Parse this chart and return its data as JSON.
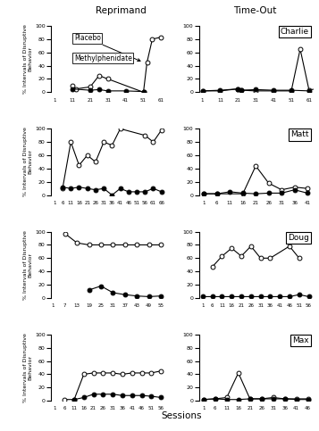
{
  "title_reprimand": "Reprimand",
  "title_timeout": "Time-Out",
  "xlabel": "Sessions",
  "panels": [
    {
      "row": 0,
      "col": 0,
      "placebo_x": [
        11,
        13,
        21,
        26,
        31,
        51,
        53,
        56,
        61
      ],
      "placebo_y": [
        10,
        5,
        8,
        25,
        20,
        0,
        45,
        80,
        83
      ],
      "methyl_x": [
        11,
        21,
        26,
        31,
        41,
        51
      ],
      "methyl_y": [
        5,
        3,
        4,
        2,
        2,
        1
      ],
      "xticks": [
        1,
        11,
        21,
        31,
        41,
        51,
        61
      ],
      "xlim": [
        -1,
        63
      ],
      "ylim": [
        0,
        100
      ],
      "show_legend": true,
      "name": ""
    },
    {
      "row": 0,
      "col": 1,
      "placebo_x": [
        1,
        11,
        21,
        23,
        31,
        41,
        51,
        56,
        61,
        63
      ],
      "placebo_y": [
        2,
        2,
        5,
        3,
        2,
        2,
        2,
        65,
        3,
        2
      ],
      "methyl_x": [
        1,
        11,
        21,
        23,
        31,
        41,
        51,
        61
      ],
      "methyl_y": [
        2,
        3,
        5,
        3,
        4,
        3,
        3,
        2
      ],
      "xticks": [
        1,
        11,
        21,
        31,
        41,
        51,
        61
      ],
      "xlim": [
        -1,
        63
      ],
      "ylim": [
        0,
        100
      ],
      "show_legend": false,
      "name": "Charlie"
    },
    {
      "row": 1,
      "col": 0,
      "placebo_x": [
        6,
        11,
        16,
        21,
        26,
        31,
        36,
        41,
        56,
        61,
        66
      ],
      "placebo_y": [
        10,
        80,
        45,
        60,
        50,
        80,
        75,
        100,
        90,
        80,
        98
      ],
      "methyl_x": [
        6,
        11,
        16,
        21,
        26,
        31,
        36,
        41,
        46,
        51,
        56,
        61,
        66
      ],
      "methyl_y": [
        12,
        10,
        12,
        10,
        8,
        10,
        0,
        10,
        5,
        5,
        5,
        10,
        5
      ],
      "xticks": [
        1,
        6,
        11,
        16,
        21,
        26,
        31,
        36,
        41,
        46,
        51,
        56,
        61,
        66
      ],
      "xlim": [
        -1,
        68
      ],
      "ylim": [
        0,
        100
      ],
      "show_legend": false,
      "name": ""
    },
    {
      "row": 1,
      "col": 1,
      "placebo_x": [
        1,
        6,
        16,
        21,
        26,
        31,
        36,
        41
      ],
      "placebo_y": [
        2,
        2,
        2,
        44,
        18,
        8,
        12,
        10
      ],
      "methyl_x": [
        1,
        6,
        11,
        16,
        21,
        26,
        31,
        36,
        41
      ],
      "methyl_y": [
        2,
        2,
        5,
        3,
        2,
        3,
        3,
        8,
        3
      ],
      "xticks": [
        1,
        6,
        11,
        16,
        21,
        26,
        31,
        36,
        41
      ],
      "xlim": [
        -1,
        43
      ],
      "ylim": [
        0,
        100
      ],
      "show_legend": false,
      "name": "Matt"
    },
    {
      "row": 2,
      "col": 0,
      "placebo_x": [
        7,
        13,
        19,
        25,
        31,
        37,
        43,
        49,
        55
      ],
      "placebo_y": [
        97,
        83,
        80,
        80,
        80,
        80,
        80,
        80,
        80
      ],
      "methyl_x": [
        19,
        25,
        31,
        37,
        43,
        49,
        55
      ],
      "methyl_y": [
        12,
        18,
        8,
        5,
        3,
        2,
        3
      ],
      "xticks": [
        1,
        7,
        13,
        19,
        25,
        31,
        37,
        43,
        49,
        55
      ],
      "xlim": [
        0,
        57
      ],
      "ylim": [
        0,
        100
      ],
      "show_legend": false,
      "name": ""
    },
    {
      "row": 2,
      "col": 1,
      "placebo_x": [
        6,
        11,
        16,
        21,
        26,
        31,
        36,
        46,
        51
      ],
      "placebo_y": [
        47,
        63,
        75,
        63,
        78,
        60,
        60,
        78,
        60
      ],
      "methyl_x": [
        1,
        6,
        11,
        16,
        21,
        26,
        31,
        36,
        41,
        46,
        51,
        56
      ],
      "methyl_y": [
        2,
        2,
        2,
        2,
        2,
        2,
        2,
        2,
        2,
        2,
        5,
        2
      ],
      "xticks": [
        1,
        6,
        11,
        16,
        21,
        26,
        31,
        36,
        41,
        46,
        51,
        56
      ],
      "xlim": [
        -1,
        58
      ],
      "ylim": [
        0,
        100
      ],
      "show_legend": false,
      "name": "Doug"
    },
    {
      "row": 3,
      "col": 0,
      "placebo_x": [
        6,
        11,
        16,
        21,
        26,
        31,
        36,
        41,
        46,
        51,
        56
      ],
      "placebo_y": [
        2,
        2,
        40,
        42,
        42,
        42,
        40,
        42,
        42,
        42,
        45
      ],
      "methyl_x": [
        11,
        16,
        21,
        26,
        31,
        36,
        41,
        46,
        51,
        56
      ],
      "methyl_y": [
        2,
        5,
        10,
        10,
        10,
        8,
        8,
        8,
        7,
        5
      ],
      "xticks": [
        1,
        6,
        11,
        16,
        21,
        26,
        31,
        36,
        41,
        46,
        51,
        56
      ],
      "xlim": [
        -1,
        58
      ],
      "ylim": [
        0,
        100
      ],
      "show_legend": false,
      "name": ""
    },
    {
      "row": 3,
      "col": 1,
      "placebo_x": [
        1,
        6,
        11,
        16,
        21,
        26,
        31,
        36,
        41,
        46
      ],
      "placebo_y": [
        2,
        3,
        5,
        42,
        3,
        3,
        5,
        3,
        3,
        3
      ],
      "methyl_x": [
        1,
        6,
        11,
        16,
        21,
        26,
        31,
        36,
        41,
        46
      ],
      "methyl_y": [
        2,
        3,
        2,
        2,
        3,
        3,
        3,
        3,
        2,
        2
      ],
      "xticks": [
        1,
        6,
        11,
        16,
        21,
        26,
        31,
        36,
        41,
        46
      ],
      "xlim": [
        -1,
        48
      ],
      "ylim": [
        0,
        100
      ],
      "show_legend": false,
      "name": "Max"
    }
  ]
}
